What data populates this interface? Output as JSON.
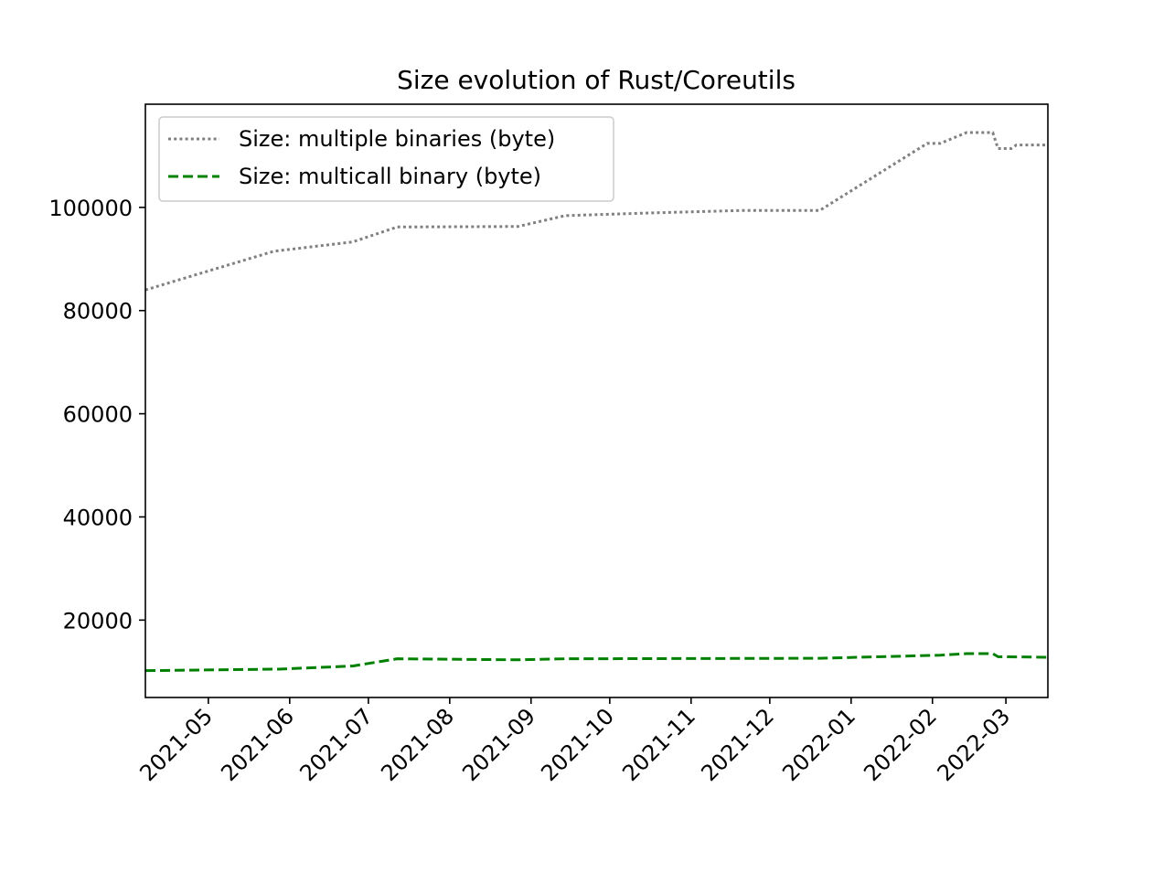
{
  "chart_data": {
    "type": "line",
    "title": "Size evolution of Rust/Coreutils",
    "xlabel": "",
    "ylabel": "",
    "x_axis": {
      "type": "date",
      "range": [
        "2021-04-07",
        "2022-03-17"
      ],
      "ticks": [
        "2021-05",
        "2021-06",
        "2021-07",
        "2021-08",
        "2021-09",
        "2021-10",
        "2021-11",
        "2021-12",
        "2022-01",
        "2022-02",
        "2022-03"
      ]
    },
    "y_axis": {
      "range": [
        5000,
        120000
      ],
      "ticks": [
        20000,
        40000,
        60000,
        80000,
        100000
      ]
    },
    "grid": false,
    "legend": "top-left",
    "series": [
      {
        "name": "Size: multiple binaries (byte)",
        "color": "#808080",
        "style": "dotted",
        "points": [
          {
            "x": "2021-04-07",
            "y": 84000
          },
          {
            "x": "2021-05-26",
            "y": 91500
          },
          {
            "x": "2021-06-25",
            "y": 93300
          },
          {
            "x": "2021-07-12",
            "y": 96200
          },
          {
            "x": "2021-08-27",
            "y": 96300
          },
          {
            "x": "2021-09-14",
            "y": 98400
          },
          {
            "x": "2021-10-15",
            "y": 98900
          },
          {
            "x": "2021-11-20",
            "y": 99400
          },
          {
            "x": "2021-12-20",
            "y": 99400
          },
          {
            "x": "2022-01-30",
            "y": 112400
          },
          {
            "x": "2022-02-04",
            "y": 112400
          },
          {
            "x": "2022-02-14",
            "y": 114500
          },
          {
            "x": "2022-02-24",
            "y": 114500
          },
          {
            "x": "2022-02-26",
            "y": 111400
          },
          {
            "x": "2022-03-03",
            "y": 111400
          },
          {
            "x": "2022-03-05",
            "y": 112100
          },
          {
            "x": "2022-03-17",
            "y": 112100
          }
        ]
      },
      {
        "name": "Size: multicall binary (byte)",
        "color": "#008000",
        "style": "dashed",
        "points": [
          {
            "x": "2021-04-07",
            "y": 10200
          },
          {
            "x": "2021-05-28",
            "y": 10500
          },
          {
            "x": "2021-06-25",
            "y": 11100
          },
          {
            "x": "2021-07-12",
            "y": 12500
          },
          {
            "x": "2021-08-27",
            "y": 12300
          },
          {
            "x": "2021-09-14",
            "y": 12500
          },
          {
            "x": "2021-12-20",
            "y": 12600
          },
          {
            "x": "2022-02-04",
            "y": 13200
          },
          {
            "x": "2022-02-14",
            "y": 13500
          },
          {
            "x": "2022-02-24",
            "y": 13500
          },
          {
            "x": "2022-02-26",
            "y": 12900
          },
          {
            "x": "2022-03-17",
            "y": 12800
          }
        ]
      }
    ]
  }
}
